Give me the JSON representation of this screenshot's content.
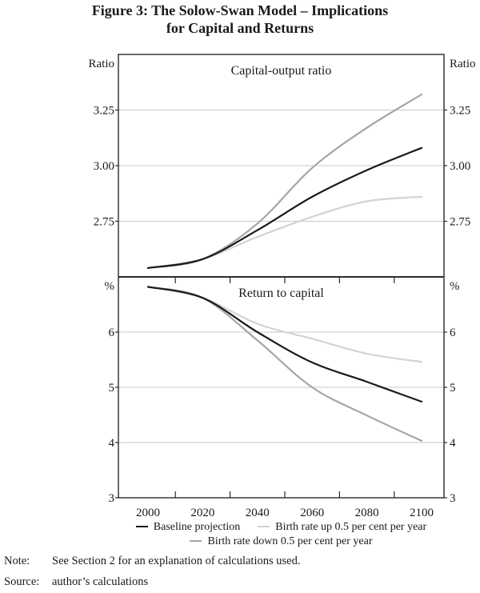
{
  "title": {
    "line1": "Figure 3: The Solow-Swan Model – Implications",
    "line2": "for Capital and Returns"
  },
  "chart_data": [
    {
      "type": "line",
      "panel_title": "Capital-output ratio",
      "unit": "Ratio",
      "x": [
        2000,
        2020,
        2040,
        2060,
        2080,
        2100
      ],
      "series": [
        {
          "name": "Baseline projection",
          "color": "#1a1a1a",
          "values": [
            2.54,
            2.58,
            2.71,
            2.86,
            2.98,
            3.08
          ]
        },
        {
          "name": "Birth rate up 0.5 per cent per year",
          "color": "#d3d3d3",
          "values": [
            2.54,
            2.58,
            2.68,
            2.77,
            2.84,
            2.86
          ]
        },
        {
          "name": "Birth rate down 0.5 per cent per year",
          "color": "#a6a6a6",
          "values": [
            2.54,
            2.58,
            2.74,
            2.99,
            3.17,
            3.32
          ]
        }
      ],
      "ylim": [
        2.5,
        3.5
      ],
      "yticks": [
        {
          "value": 2.75,
          "label": "2.75",
          "grid": true
        },
        {
          "value": 3.0,
          "label": "3.00",
          "grid": true
        },
        {
          "value": 3.25,
          "label": "3.25",
          "grid": true
        }
      ],
      "grid": true,
      "legend_position": "below-shared"
    },
    {
      "type": "line",
      "panel_title": "Return to capital",
      "unit": "%",
      "x": [
        2000,
        2020,
        2040,
        2060,
        2080,
        2100
      ],
      "series": [
        {
          "name": "Baseline projection",
          "color": "#1a1a1a",
          "values": [
            6.82,
            6.62,
            6.0,
            5.45,
            5.1,
            4.74
          ]
        },
        {
          "name": "Birth rate up 0.5 per cent per year",
          "color": "#d3d3d3",
          "values": [
            6.82,
            6.62,
            6.15,
            5.88,
            5.61,
            5.46
          ]
        },
        {
          "name": "Birth rate down 0.5 per cent per year",
          "color": "#a6a6a6",
          "values": [
            6.82,
            6.62,
            5.85,
            5.0,
            4.49,
            4.03
          ]
        }
      ],
      "ylim": [
        3,
        7
      ],
      "yticks": [
        {
          "value": 6,
          "label": "6",
          "grid": true
        },
        {
          "value": 5,
          "label": "5",
          "grid": true
        },
        {
          "value": 4,
          "label": "4",
          "grid": true
        },
        {
          "value": 3,
          "label": "3",
          "grid": false
        }
      ],
      "grid": true
    }
  ],
  "colors": {
    "baseline": "#1a1a1a",
    "birth_rate_up": "#d3d3d3",
    "birth_rate_down": "#a6a6a6",
    "gridline": "#c9c9c9",
    "axis": "#2b2b2b"
  },
  "footer": {
    "note_label": "Note:",
    "note_text": "See Section 2 for an explanation of calculations used.",
    "source_label": "Source:",
    "source_text": "author’s calculations"
  }
}
